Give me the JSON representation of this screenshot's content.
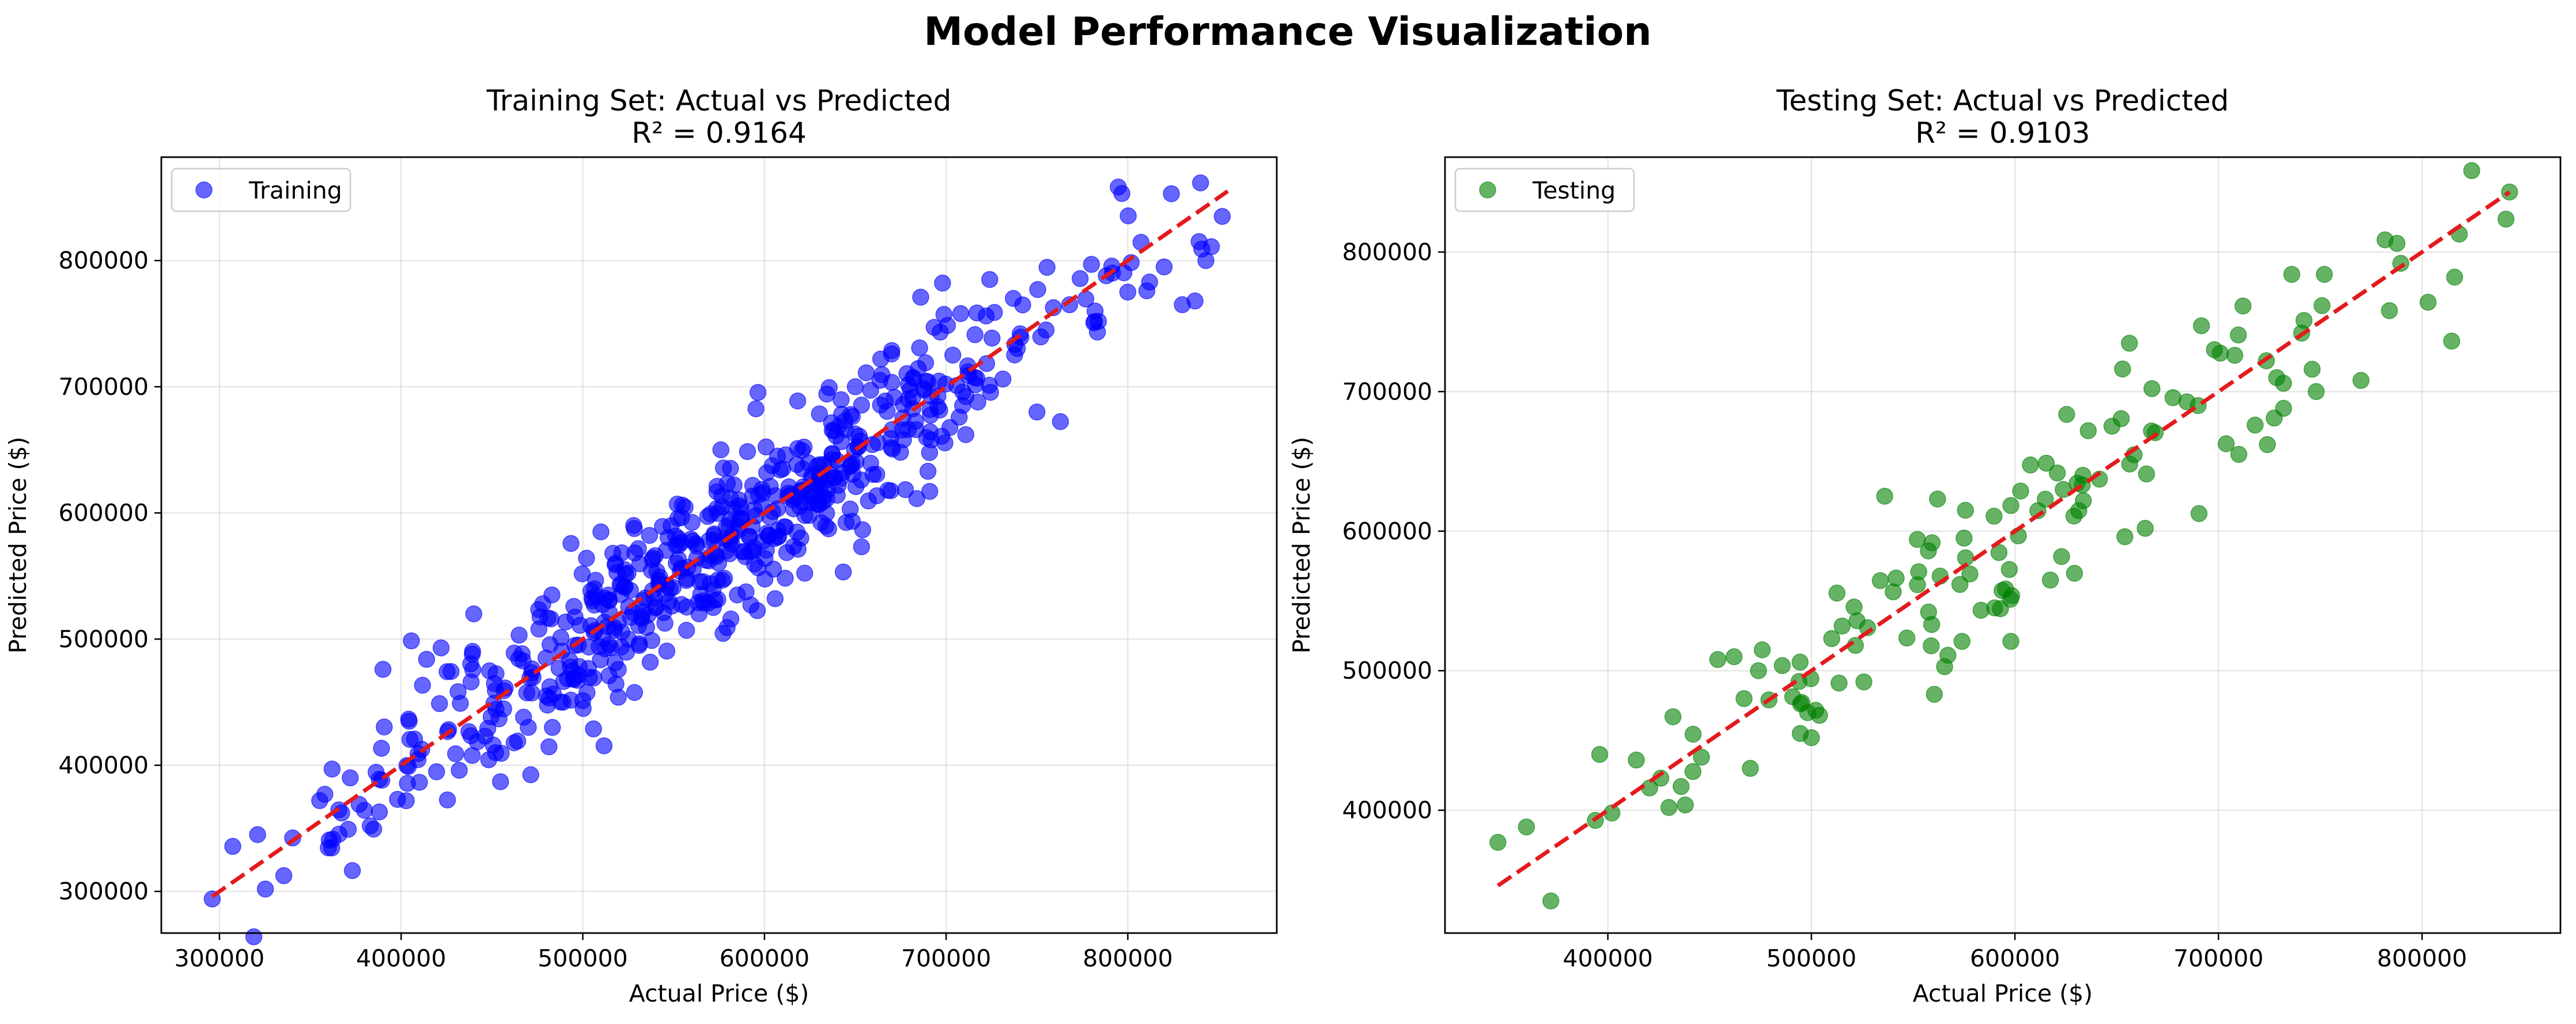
{
  "figure": {
    "title": "Model Performance Visualization"
  },
  "chart_data": [
    {
      "type": "scatter",
      "title": "Training Set: Actual vs Predicted",
      "subtitle": "R² = 0.9164",
      "xlabel": "Actual Price ($)",
      "ylabel": "Predicted Price ($)",
      "xlim": [
        268000,
        882000
      ],
      "ylim": [
        267000,
        882000
      ],
      "xticks": [
        300000,
        400000,
        500000,
        600000,
        700000,
        800000
      ],
      "yticks": [
        300000,
        400000,
        500000,
        600000,
        700000,
        800000
      ],
      "grid": true,
      "legend": {
        "position": "top-left",
        "entries": [
          "Training"
        ]
      },
      "reference_line": {
        "x": [
          296000,
          855000
        ],
        "y": [
          296000,
          855000
        ],
        "color": "#e41a1c",
        "style": "dashed"
      },
      "series": [
        {
          "name": "Training",
          "color": "#0000ff",
          "generator": {
            "n": 640,
            "seed": 11,
            "x_center": 575000,
            "x_sd": 95000,
            "x_min": 296000,
            "x_max": 855000,
            "noise_sd": 32000
          },
          "points": [
            [
              296000,
              294000
            ],
            [
              321000,
              345000
            ],
            [
              358000,
              377000
            ],
            [
              362000,
              397000
            ],
            [
              372000,
              390000
            ],
            [
              383000,
              352000
            ],
            [
              388000,
              363000
            ],
            [
              390000,
              476000
            ],
            [
              398000,
              373000
            ],
            [
              404000,
              399000
            ],
            [
              414000,
              484000
            ],
            [
              422000,
              493000
            ],
            [
              432000,
              396000
            ],
            [
              440000,
              520000
            ],
            [
              452000,
              410000
            ],
            [
              470000,
              430000
            ],
            [
              478000,
              528000
            ],
            [
              483000,
              535000
            ],
            [
              510000,
              585000
            ],
            [
              528000,
              590000
            ],
            [
              552000,
              607000
            ],
            [
              564000,
              520000
            ],
            [
              576000,
              650000
            ],
            [
              620000,
              580000
            ],
            [
              650000,
              700000
            ],
            [
              664000,
              722000
            ],
            [
              670000,
              726000
            ],
            [
              686000,
              771000
            ],
            [
              690000,
              633000
            ],
            [
              708000,
              758000
            ],
            [
              724000,
              785000
            ],
            [
              737000,
              770000
            ],
            [
              750000,
              680000
            ],
            [
              755000,
              745000
            ],
            [
              768000,
              765000
            ],
            [
              780000,
              797000
            ],
            [
              782000,
              760000
            ],
            [
              800000,
              775000
            ],
            [
              812000,
              783000
            ],
            [
              820000,
              795000
            ],
            [
              824000,
              853000
            ],
            [
              830000,
              765000
            ],
            [
              837000,
              768000
            ],
            [
              843000,
              800000
            ],
            [
              846000,
              811000
            ],
            [
              852000,
              835000
            ]
          ]
        }
      ]
    },
    {
      "type": "scatter",
      "title": "Testing Set: Actual vs Predicted",
      "subtitle": "R² = 0.9103",
      "xlabel": "Actual Price ($)",
      "ylabel": "Predicted Price ($)",
      "xlim": [
        320000,
        868000
      ],
      "ylim": [
        312000,
        868000
      ],
      "xticks": [
        400000,
        500000,
        600000,
        700000,
        800000
      ],
      "yticks": [
        400000,
        500000,
        600000,
        700000,
        800000
      ],
      "grid": true,
      "legend": {
        "position": "top-left",
        "entries": [
          "Testing"
        ]
      },
      "reference_line": {
        "x": [
          346000,
          843000
        ],
        "y": [
          346000,
          843000
        ],
        "color": "#e41a1c",
        "style": "dashed"
      },
      "series": [
        {
          "name": "Testing",
          "color": "#008000",
          "generator": {
            "n": 150,
            "seed": 29,
            "x_center": 590000,
            "x_sd": 95000,
            "x_min": 346000,
            "x_max": 843000,
            "noise_sd": 30000
          },
          "points": [
            [
              346000,
              377000
            ],
            [
              360000,
              388000
            ],
            [
              372000,
              335000
            ],
            [
              396000,
              440000
            ],
            [
              402000,
              398000
            ],
            [
              414000,
              436000
            ],
            [
              426000,
              423000
            ],
            [
              430000,
              402000
            ],
            [
              432000,
              467000
            ],
            [
              436000,
              417000
            ],
            [
              446000,
              438000
            ],
            [
              454000,
              508000
            ],
            [
              462000,
              510000
            ],
            [
              470000,
              430000
            ],
            [
              474000,
              500000
            ],
            [
              500000,
              452000
            ],
            [
              504000,
              468000
            ],
            [
              510000,
              523000
            ],
            [
              536000,
              625000
            ],
            [
              562000,
              623000
            ],
            [
              574000,
              521000
            ],
            [
              590000,
              545000
            ],
            [
              598000,
              521000
            ],
            [
              636000,
              672000
            ],
            [
              654000,
              596000
            ],
            [
              664000,
              602000
            ],
            [
              690000,
              690000
            ],
            [
              698000,
              730000
            ],
            [
              708000,
              726000
            ],
            [
              710000,
              655000
            ],
            [
              718000,
              676000
            ],
            [
              724000,
              662000
            ],
            [
              732000,
              688000
            ],
            [
              736000,
              784000
            ],
            [
              742000,
              751000
            ],
            [
              746000,
              716000
            ],
            [
              748000,
              700000
            ],
            [
              752000,
              784000
            ],
            [
              770000,
              708000
            ],
            [
              784000,
              758000
            ],
            [
              816000,
              782000
            ],
            [
              843000,
              843000
            ]
          ]
        }
      ]
    }
  ]
}
